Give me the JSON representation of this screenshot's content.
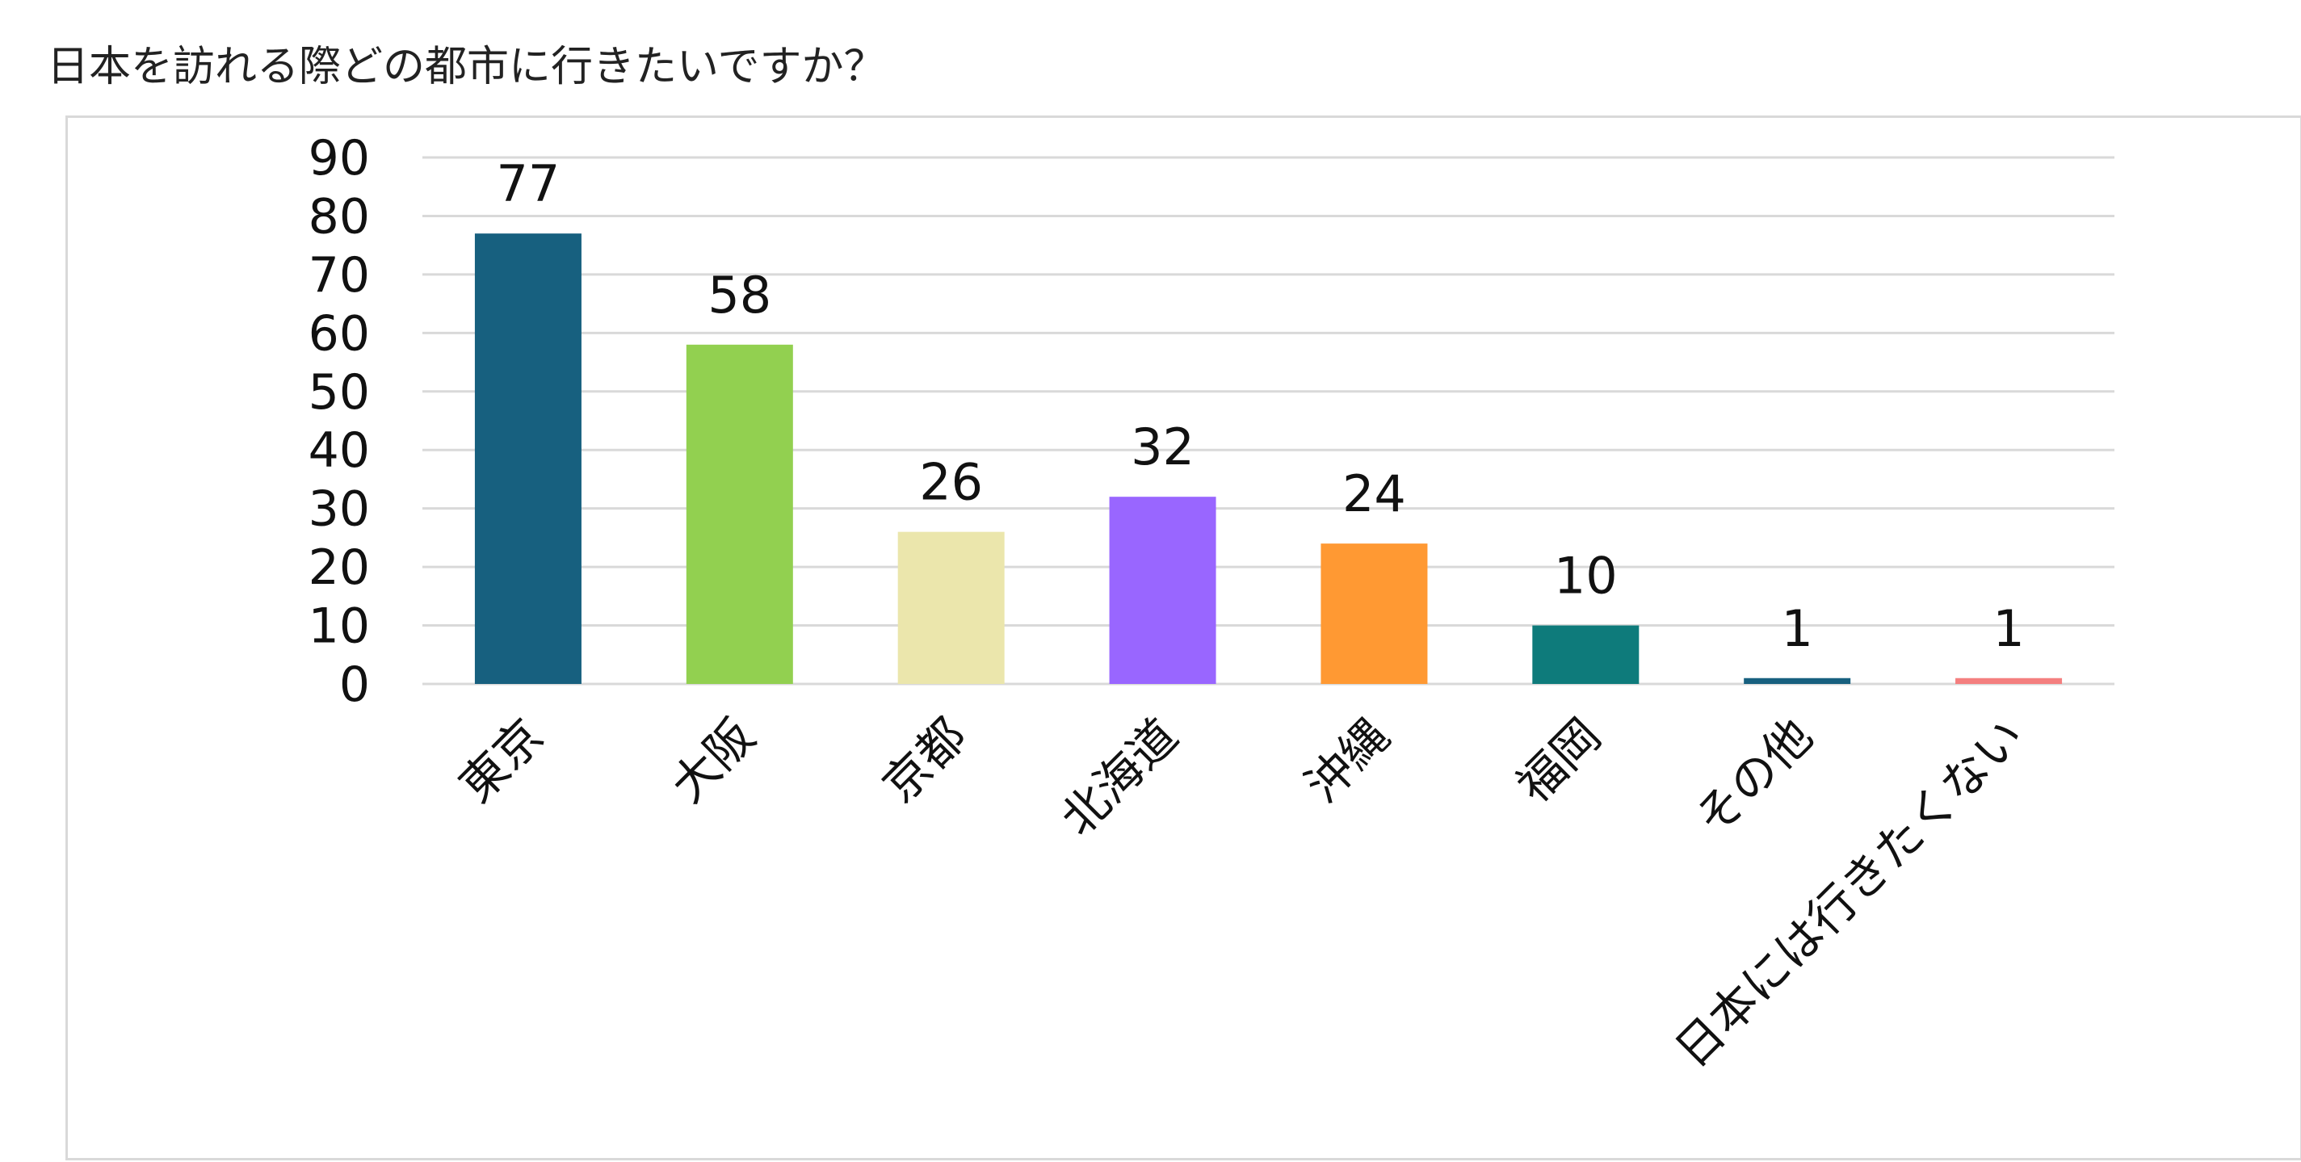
{
  "title": "日本を訪れる際どの都市に行きたいですか？",
  "chart_data": {
    "type": "bar",
    "categories": [
      "東京",
      "大阪",
      "京都",
      "北海道",
      "沖縄",
      "福岡",
      "その他",
      "日本には行きたくない"
    ],
    "values": [
      77,
      58,
      26,
      32,
      24,
      10,
      1,
      1
    ],
    "colors": [
      "#17607f",
      "#92d050",
      "#ebe6ac",
      "#9966ff",
      "#ff9933",
      "#0e7b7b",
      "#17607f",
      "#f47f7f"
    ],
    "ylim": [
      0,
      90
    ],
    "yticks": [
      "0",
      "10",
      "20",
      "30",
      "40",
      "50",
      "60",
      "70",
      "80",
      "90"
    ],
    "grid": true,
    "legend": "none"
  }
}
